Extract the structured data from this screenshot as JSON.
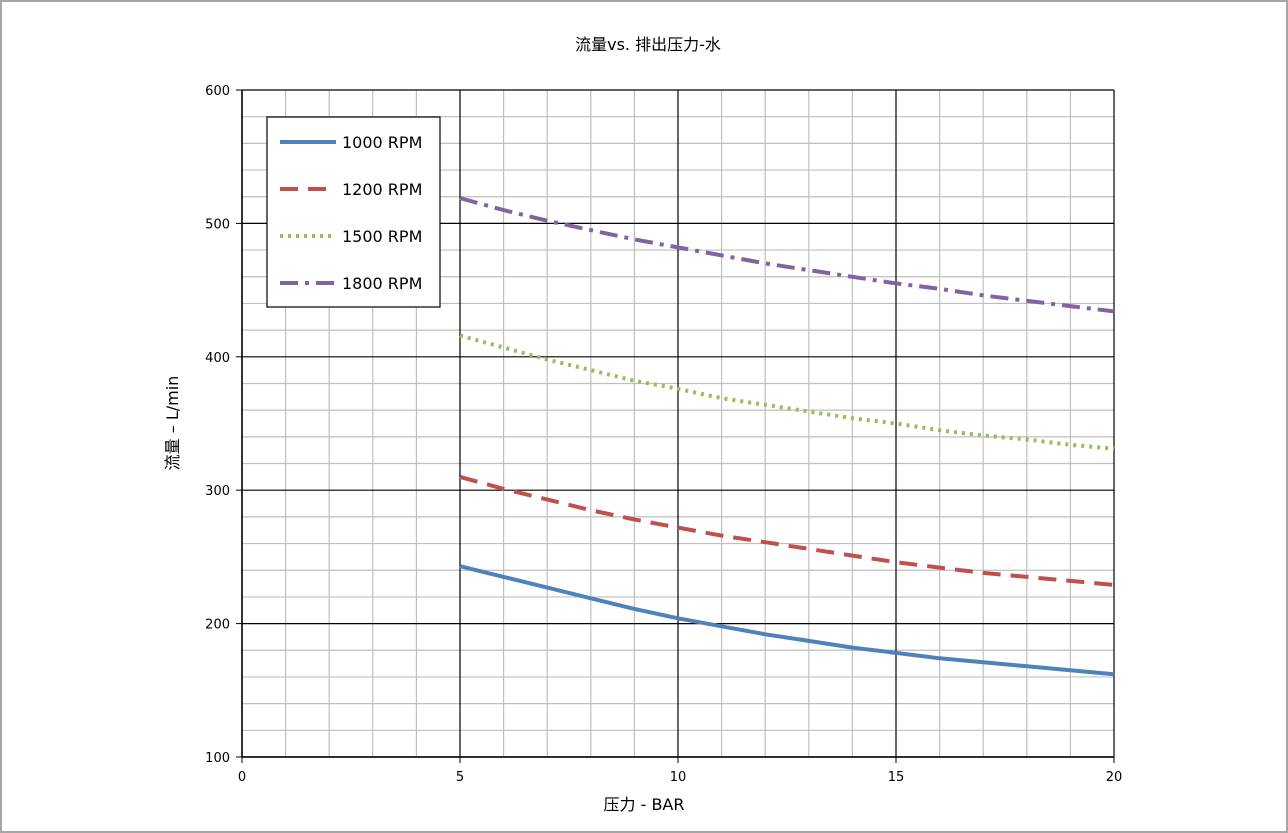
{
  "chart_data": {
    "type": "line",
    "title": "流量vs. 排出压力-水",
    "xlabel": "压力 - BAR",
    "ylabel": "流量 – L/min",
    "xlim": [
      0,
      20
    ],
    "ylim": [
      100,
      600
    ],
    "x_ticks": [
      0,
      5,
      10,
      15,
      20
    ],
    "y_ticks": [
      100,
      200,
      300,
      400,
      500,
      600
    ],
    "x_minor_step": 1,
    "y_minor_step": 20,
    "grid": true,
    "legend_position": "top-left",
    "series": [
      {
        "name": "1000 RPM",
        "color": "#4f81bd",
        "dash": "solid",
        "x": [
          5,
          6,
          7,
          8,
          9,
          10,
          11,
          12,
          13,
          14,
          15,
          16,
          17,
          18,
          19,
          20
        ],
        "y": [
          243,
          235,
          227,
          219,
          211,
          204,
          198,
          192,
          187,
          182,
          178,
          174,
          171,
          168,
          165,
          162
        ]
      },
      {
        "name": "1200 RPM",
        "color": "#c0504d",
        "dash": "dash",
        "x": [
          5,
          6,
          7,
          8,
          9,
          10,
          11,
          12,
          13,
          14,
          15,
          16,
          17,
          18,
          19,
          20
        ],
        "y": [
          310,
          301,
          293,
          285,
          278,
          272,
          266,
          261,
          256,
          251,
          246,
          242,
          238,
          235,
          232,
          229
        ]
      },
      {
        "name": "1500 RPM",
        "color": "#9bbb59",
        "dash": "dot",
        "x": [
          5,
          6,
          7,
          8,
          9,
          10,
          11,
          12,
          13,
          14,
          15,
          16,
          17,
          18,
          19,
          20
        ],
        "y": [
          416,
          407,
          398,
          390,
          382,
          376,
          369,
          364,
          359,
          354,
          350,
          345,
          341,
          338,
          334,
          331
        ]
      },
      {
        "name": "1800 RPM",
        "color": "#8064a2",
        "dash": "dashdot",
        "x": [
          5,
          6,
          7,
          8,
          9,
          10,
          11,
          12,
          13,
          14,
          15,
          16,
          17,
          18,
          19,
          20
        ],
        "y": [
          519,
          510,
          502,
          495,
          488,
          482,
          476,
          470,
          465,
          460,
          455,
          451,
          446,
          442,
          438,
          434
        ]
      }
    ]
  }
}
